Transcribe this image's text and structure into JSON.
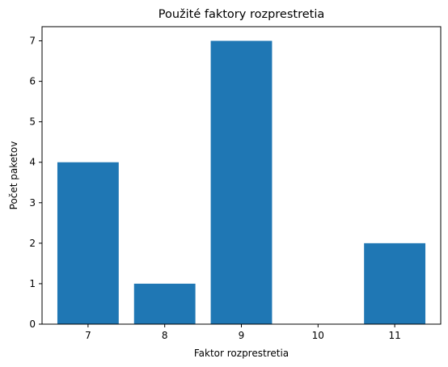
{
  "chart_data": {
    "type": "bar",
    "title": "Použité faktory rozprestretia",
    "xlabel": "Faktor rozprestretia",
    "ylabel": "Počet paketov",
    "categories": [
      "7",
      "8",
      "9",
      "10",
      "11"
    ],
    "values": [
      4,
      1,
      7,
      0,
      2
    ],
    "ylim": [
      0,
      7.35
    ],
    "yticks": [
      "0",
      "1",
      "2",
      "3",
      "4",
      "5",
      "6",
      "7"
    ],
    "bar_color": "#1f77b4",
    "grid": false,
    "legend": "none"
  }
}
